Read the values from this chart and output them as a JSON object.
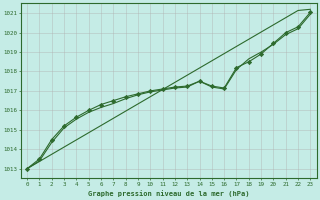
{
  "title": "Graphe pression niveau de la mer (hPa)",
  "xlim": [
    -0.5,
    23.5
  ],
  "ylim": [
    1012.5,
    1021.5
  ],
  "yticks": [
    1013,
    1014,
    1015,
    1016,
    1017,
    1018,
    1019,
    1020,
    1021
  ],
  "xticks": [
    0,
    1,
    2,
    3,
    4,
    5,
    6,
    7,
    8,
    9,
    10,
    11,
    12,
    13,
    14,
    15,
    16,
    17,
    18,
    19,
    20,
    21,
    22,
    23
  ],
  "bg_color": "#c5ece6",
  "grid_color": "#b0b0b0",
  "line_color": "#2d6a2d",
  "marker_color": "#2d6a2d",
  "y_straight": [
    1013.0,
    1013.37,
    1013.74,
    1014.11,
    1014.48,
    1014.85,
    1015.22,
    1015.59,
    1015.96,
    1016.33,
    1016.7,
    1017.07,
    1017.44,
    1017.81,
    1018.18,
    1018.55,
    1018.92,
    1019.29,
    1019.66,
    1020.03,
    1020.4,
    1020.77,
    1021.14,
    1021.2
  ],
  "y_main": [
    1013.0,
    1013.5,
    1014.5,
    1015.2,
    1015.65,
    1016.0,
    1016.3,
    1016.5,
    1016.7,
    1016.85,
    1017.0,
    1017.1,
    1017.2,
    1017.25,
    1017.5,
    1017.25,
    1017.15,
    1018.2,
    1018.5,
    1018.9,
    1019.45,
    1020.0,
    1020.3,
    1021.05
  ],
  "y_lower": [
    1013.0,
    1013.4,
    1014.35,
    1015.1,
    1015.55,
    1015.9,
    1016.15,
    1016.35,
    1016.6,
    1016.8,
    1016.95,
    1017.05,
    1017.15,
    1017.2,
    1017.5,
    1017.2,
    1017.1,
    1018.1,
    1018.65,
    1019.0,
    1019.4,
    1019.9,
    1020.2,
    1020.95
  ]
}
